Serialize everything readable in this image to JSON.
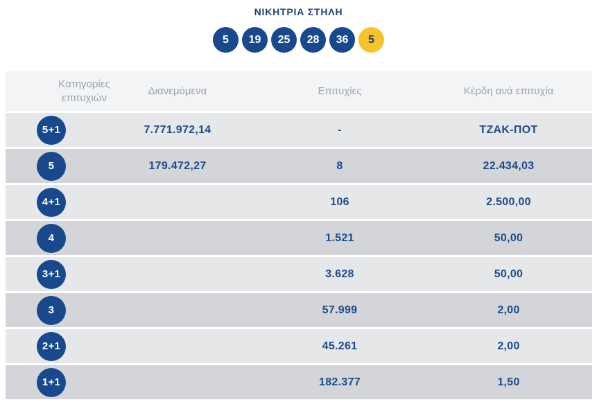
{
  "colors": {
    "navy": "#17498c",
    "title_navy": "#1a4478",
    "value_navy": "#1b4b8a",
    "header_text": "#9ba1a8",
    "header_bg": "#f3f4f6",
    "row_light": "#e6e7e9",
    "row_dark": "#d3d5d8",
    "joker_yellow": "#f5c32b",
    "joker_text": "#17376b"
  },
  "winning_column": {
    "title": "ΝΙΚΗΤΡΙΑ ΣΤΗΛΗ",
    "numbers": [
      "5",
      "19",
      "25",
      "28",
      "36"
    ],
    "joker": "5"
  },
  "table": {
    "headers": {
      "category_line1": "Κατηγορίες",
      "category_line2": "επιτυχιών",
      "distributed": "Διανεμόμενα",
      "successes": "Επιτυχίες",
      "winnings": "Κέρδη ανά επιτυχία"
    },
    "rows": [
      {
        "category": "5+1",
        "distributed": "7.771.972,14",
        "successes": "-",
        "winnings": "ΤΖΑΚ-ΠΟΤ"
      },
      {
        "category": "5",
        "distributed": "179.472,27",
        "successes": "8",
        "winnings": "22.434,03"
      },
      {
        "category": "4+1",
        "distributed": "",
        "successes": "106",
        "winnings": "2.500,00"
      },
      {
        "category": "4",
        "distributed": "",
        "successes": "1.521",
        "winnings": "50,00"
      },
      {
        "category": "3+1",
        "distributed": "",
        "successes": "3.628",
        "winnings": "50,00"
      },
      {
        "category": "3",
        "distributed": "",
        "successes": "57.999",
        "winnings": "2,00"
      },
      {
        "category": "2+1",
        "distributed": "",
        "successes": "45.261",
        "winnings": "2,00"
      },
      {
        "category": "1+1",
        "distributed": "",
        "successes": "182.377",
        "winnings": "1,50"
      }
    ]
  }
}
